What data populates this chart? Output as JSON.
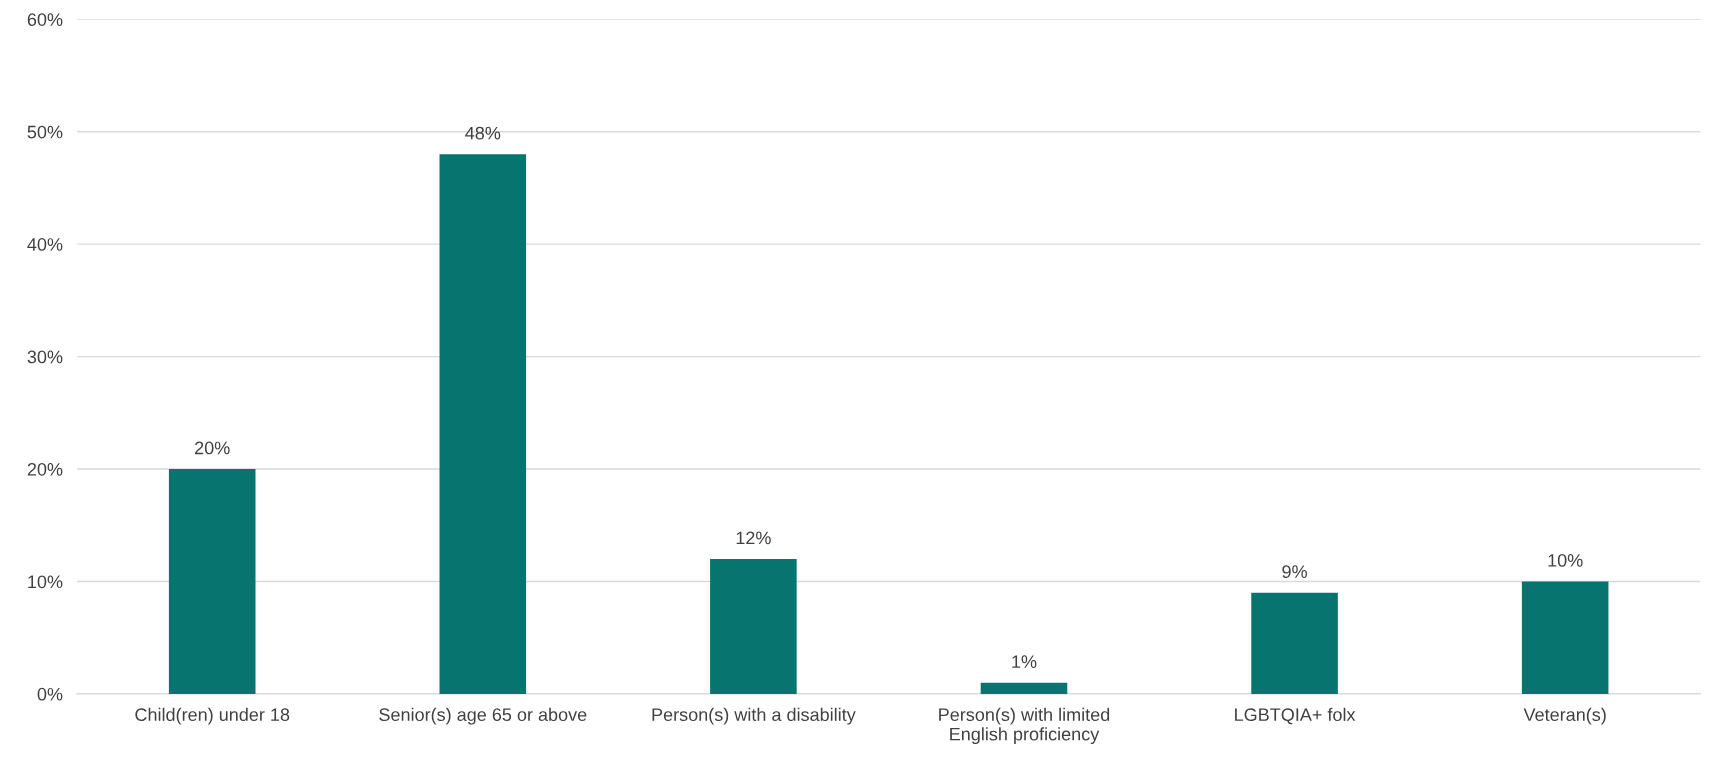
{
  "chart_data": {
    "type": "bar",
    "categories": [
      "Child(ren) under 18",
      "Senior(s) age 65 or above",
      "Person(s) with a disability",
      "Person(s) with limited\nEnglish proficiency",
      "LGBTQIA+ folx",
      "Veteran(s)"
    ],
    "values": [
      20,
      48,
      12,
      1,
      9,
      10
    ],
    "value_labels": [
      "20%",
      "48%",
      "12%",
      "1%",
      "9%",
      "10%"
    ],
    "color": "#087470",
    "ylim": [
      0,
      60
    ],
    "yticks": [
      {
        "value": 0,
        "label": "0%"
      },
      {
        "value": 10,
        "label": "10%"
      },
      {
        "value": 20,
        "label": "20%"
      },
      {
        "value": 30,
        "label": "30%"
      },
      {
        "value": 40,
        "label": "40%"
      },
      {
        "value": 50,
        "label": "50%"
      },
      {
        "value": 60,
        "label": "60%"
      }
    ],
    "grid": "y"
  }
}
